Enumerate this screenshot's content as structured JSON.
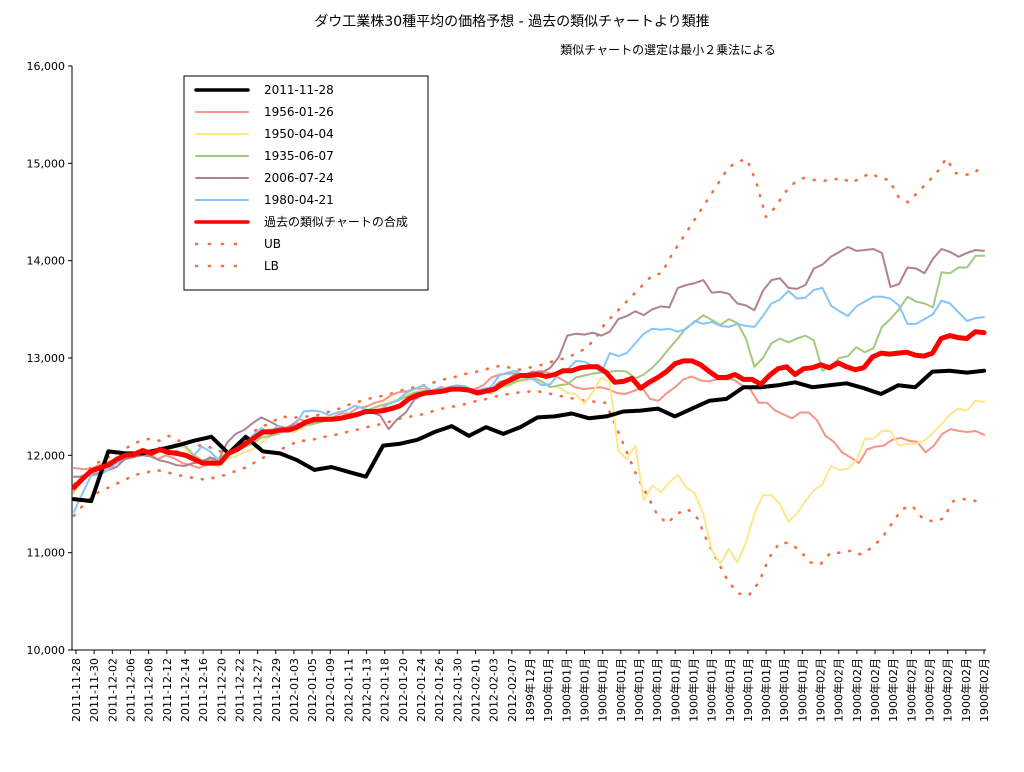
{
  "chart_data": {
    "type": "line",
    "title": "ダウ工業株30種平均の価格予想 - 過去の類似チャートより類推",
    "subtitle": "類似チャートの選定は最小２乗法による",
    "ylim": [
      10000,
      16000
    ],
    "y_ticks": [
      "10,000",
      "11,000",
      "12,000",
      "13,000",
      "14,000",
      "15,000",
      "16,000"
    ],
    "y_tick_values": [
      10000,
      11000,
      12000,
      13000,
      14000,
      15000,
      16000
    ],
    "x_tick_labels": [
      "2011-11-28",
      "2011-11-30",
      "2011-12-02",
      "2011-12-06",
      "2011-12-08",
      "2011-12-12",
      "2011-12-14",
      "2011-12-16",
      "2011-12-20",
      "2011-12-22",
      "2011-12-27",
      "2011-12-29",
      "2012-01-03",
      "2012-01-05",
      "2012-01-09",
      "2012-01-11",
      "2012-01-13",
      "2012-01-18",
      "2012-01-20",
      "2012-01-24",
      "2012-01-26",
      "2012-01-30",
      "2012-02-01",
      "2012-02-03",
      "2012-02-07",
      "1899年12月",
      "1900年01月",
      "1900年01月",
      "1900年01月",
      "1900年01月",
      "1900年01月",
      "1900年01月",
      "1900年01月",
      "1900年01月",
      "1900年01月",
      "1900年01月",
      "1900年01月",
      "1900年01月",
      "1900年01月",
      "1900年01月",
      "1900年01月",
      "1900年02月",
      "1900年02月",
      "1900年02月",
      "1900年02月",
      "1900年02月",
      "1900年02月",
      "1900年02月",
      "1900年02月",
      "1900年02月",
      "1900年02月"
    ],
    "grid": false,
    "legend_position": "top-left",
    "series": [
      {
        "name": "2011-11-28",
        "color": "#000000",
        "style": "solid-thick",
        "values": [
          11550,
          11530,
          12040,
          12020,
          12020,
          12060,
          12100,
          12150,
          12190,
          12020,
          12190,
          12040,
          12020,
          11950,
          11850,
          11880,
          11830,
          11780,
          12100,
          12120,
          12160,
          12240,
          12300,
          12200,
          12290,
          12220,
          12290,
          12390,
          12400,
          12430,
          12380,
          12400,
          12450,
          12460,
          12480,
          12400,
          12480,
          12560,
          12580,
          12700,
          12700,
          12720,
          12750,
          12700,
          12720,
          12740,
          12690,
          12630,
          12720,
          12700,
          12860,
          12870,
          12850,
          12870
        ]
      },
      {
        "name": "1956-01-26",
        "color": "#f79486",
        "style": "solid",
        "values": [
          11870,
          11860,
          11860,
          11900,
          11930,
          11950,
          11970,
          12010,
          12040,
          12020,
          11960,
          12000,
          11970,
          11920,
          11900,
          11870,
          11910,
          11900,
          11960,
          12040,
          12140,
          12170,
          12250,
          12260,
          12270,
          12270,
          12310,
          12370,
          12350,
          12370,
          12370,
          12390,
          12430,
          12430,
          12490,
          12500,
          12540,
          12560,
          12620,
          12650,
          12660,
          12690,
          12680,
          12670,
          12700,
          12680,
          12700,
          12680,
          12680,
          12720,
          12800,
          12830,
          12840,
          12840,
          12830,
          12850,
          12870,
          12840,
          12800,
          12750,
          12700,
          12680,
          12690,
          12700,
          12680,
          12640,
          12630,
          12660,
          12700,
          12580,
          12560,
          12640,
          12700,
          12780,
          12810,
          12770,
          12760,
          12780,
          12780,
          12780,
          12720,
          12680,
          12540,
          12540,
          12460,
          12420,
          12380,
          12440,
          12440,
          12360,
          12200,
          12140,
          12030,
          11980,
          11920,
          12060,
          12090,
          12100,
          12160,
          12180,
          12150,
          12140,
          12030,
          12100,
          12220,
          12270,
          12250,
          12240,
          12250,
          12210
        ]
      },
      {
        "name": "1950-04-04",
        "color": "#fde68c",
        "style": "solid",
        "values": [
          11610,
          11790,
          11820,
          11850,
          11880,
          11940,
          11960,
          11990,
          12010,
          12020,
          12040,
          12040,
          12090,
          12080,
          11970,
          11900,
          11910,
          11880,
          11960,
          11990,
          12030,
          12060,
          12130,
          12190,
          12230,
          12250,
          12240,
          12290,
          12320,
          12340,
          12360,
          12360,
          12370,
          12400,
          12440,
          12470,
          12520,
          12540,
          12580,
          12620,
          12650,
          12670,
          12660,
          12650,
          12680,
          12700,
          12690,
          12650,
          12660,
          12630,
          12690,
          12710,
          12750,
          12770,
          12790,
          12730,
          12710,
          12700,
          12640,
          12630,
          12530,
          12650,
          12800,
          12750,
          12050,
          11960,
          12100,
          11540,
          11690,
          11620,
          11720,
          11800,
          11670,
          11610,
          11400,
          11020,
          10890,
          11040,
          10900,
          11100,
          11400,
          11590,
          11590,
          11500,
          11320,
          11400,
          11530,
          11640,
          11700,
          11890,
          11850,
          11860,
          11950,
          12170,
          12170,
          12250,
          12250,
          12100,
          12120,
          12120,
          12150,
          12230,
          12320,
          12420,
          12480,
          12460,
          12560,
          12550
        ]
      },
      {
        "name": "1935-06-07",
        "color": "#a3c97f",
        "style": "solid",
        "values": [
          11630,
          11790,
          11830,
          11860,
          11880,
          11920,
          11960,
          12020,
          12050,
          12050,
          12070,
          12060,
          12120,
          12100,
          12010,
          11950,
          11960,
          11950,
          12030,
          12050,
          12080,
          12120,
          12180,
          12200,
          12220,
          12260,
          12280,
          12310,
          12320,
          12340,
          12360,
          12360,
          12400,
          12420,
          12450,
          12480,
          12510,
          12530,
          12560,
          12600,
          12640,
          12660,
          12670,
          12650,
          12660,
          12680,
          12670,
          12660,
          12660,
          12640,
          12700,
          12720,
          12760,
          12780,
          12800,
          12760,
          12700,
          12720,
          12730,
          12800,
          12820,
          12840,
          12850,
          12860,
          12870,
          12860,
          12790,
          12830,
          12900,
          12990,
          13100,
          13200,
          13310,
          13370,
          13440,
          13390,
          13340,
          13400,
          13360,
          13200,
          12910,
          13000,
          13150,
          13200,
          13160,
          13200,
          13230,
          13180,
          12870,
          12920,
          13000,
          13020,
          13110,
          13060,
          13100,
          13320,
          13400,
          13500,
          13630,
          13580,
          13560,
          13520,
          13880,
          13870,
          13930,
          13930,
          14050,
          14050
        ]
      },
      {
        "name": "2006-07-24",
        "color": "#b3808f",
        "style": "solid",
        "values": [
          11780,
          11780,
          11800,
          11820,
          11850,
          11880,
          11960,
          11980,
          12000,
          11990,
          11950,
          11930,
          11900,
          11890,
          11920,
          11930,
          11980,
          11950,
          12130,
          12220,
          12260,
          12330,
          12390,
          12350,
          12300,
          12280,
          12320,
          12330,
          12340,
          12350,
          12370,
          12380,
          12380,
          12420,
          12460,
          12440,
          12410,
          12270,
          12370,
          12440,
          12570,
          12620,
          12640,
          12680,
          12660,
          12690,
          12680,
          12640,
          12640,
          12670,
          12750,
          12780,
          12840,
          12830,
          12860,
          12850,
          12900,
          13010,
          13230,
          13250,
          13240,
          13260,
          13230,
          13270,
          13400,
          13430,
          13480,
          13440,
          13500,
          13530,
          13520,
          13720,
          13750,
          13770,
          13800,
          13670,
          13680,
          13660,
          13560,
          13540,
          13490,
          13690,
          13800,
          13820,
          13720,
          13710,
          13750,
          13920,
          13960,
          14040,
          14090,
          14140,
          14100,
          14110,
          14120,
          14080,
          13730,
          13760,
          13930,
          13920,
          13870,
          14020,
          14120,
          14090,
          14040,
          14080,
          14110,
          14100
        ]
      },
      {
        "name": "1980-04-21",
        "color": "#86c5fb",
        "style": "solid",
        "values": [
          11420,
          11610,
          11790,
          11800,
          11850,
          11920,
          11980,
          12010,
          12050,
          12000,
          12080,
          12000,
          12050,
          12010,
          11990,
          12090,
          12040,
          11950,
          12010,
          12080,
          12130,
          12200,
          12280,
          12240,
          12300,
          12260,
          12310,
          12450,
          12460,
          12450,
          12410,
          12440,
          12460,
          12510,
          12480,
          12450,
          12470,
          12530,
          12560,
          12640,
          12680,
          12720,
          12670,
          12680,
          12700,
          12720,
          12710,
          12660,
          12680,
          12700,
          12820,
          12850,
          12870,
          12800,
          12780,
          12720,
          12730,
          12840,
          12880,
          12970,
          12960,
          12920,
          12850,
          13050,
          13020,
          13050,
          13150,
          13250,
          13300,
          13290,
          13300,
          13270,
          13300,
          13380,
          13350,
          13370,
          13330,
          13320,
          13350,
          13330,
          13320,
          13430,
          13560,
          13600,
          13690,
          13610,
          13620,
          13700,
          13720,
          13540,
          13480,
          13430,
          13530,
          13580,
          13630,
          13630,
          13610,
          13540,
          13350,
          13350,
          13400,
          13450,
          13590,
          13560,
          13470,
          13380,
          13410,
          13420
        ]
      },
      {
        "name": "過去の類似チャートの合成",
        "color": "#ff0000",
        "style": "solid-bold",
        "values": [
          11670,
          11760,
          11840,
          11870,
          11900,
          11960,
          12000,
          12010,
          12050,
          12020,
          12060,
          12030,
          12020,
          12000,
          11960,
          11920,
          11920,
          11920,
          12020,
          12060,
          12120,
          12180,
          12240,
          12240,
          12260,
          12260,
          12290,
          12340,
          12370,
          12370,
          12370,
          12380,
          12400,
          12420,
          12450,
          12450,
          12460,
          12480,
          12510,
          12580,
          12620,
          12640,
          12650,
          12660,
          12680,
          12680,
          12670,
          12640,
          12660,
          12680,
          12740,
          12780,
          12820,
          12820,
          12830,
          12810,
          12830,
          12870,
          12870,
          12900,
          12910,
          12910,
          12850,
          12750,
          12760,
          12790,
          12690,
          12750,
          12800,
          12860,
          12940,
          12970,
          12970,
          12930,
          12860,
          12800,
          12800,
          12830,
          12780,
          12780,
          12730,
          12820,
          12890,
          12910,
          12830,
          12890,
          12900,
          12930,
          12900,
          12950,
          12910,
          12880,
          12900,
          13010,
          13050,
          13040,
          13050,
          13060,
          13030,
          13020,
          13050,
          13200,
          13230,
          13210,
          13200,
          13270,
          13260
        ]
      }
    ],
    "bands": [
      {
        "name": "UB",
        "color": "#f2703f",
        "style": "dotted",
        "values": [
          11700,
          11800,
          11900,
          11950,
          12000,
          12050,
          12100,
          12150,
          12170,
          12150,
          12200,
          12150,
          12150,
          12100,
          12100,
          12050,
          12030,
          12050,
          12150,
          12250,
          12300,
          12350,
          12400,
          12380,
          12400,
          12400,
          12420,
          12450,
          12480,
          12520,
          12550,
          12580,
          12600,
          12620,
          12650,
          12680,
          12700,
          12720,
          12750,
          12780,
          12800,
          12830,
          12850,
          12870,
          12900,
          12920,
          12900,
          12880,
          12900,
          12920,
          12950,
          12980,
          13000,
          13050,
          13100,
          13200,
          13350,
          13450,
          13550,
          13650,
          13750,
          13850,
          13870,
          14050,
          14200,
          14350,
          14500,
          14650,
          14800,
          14950,
          15020,
          15040,
          14800,
          14450,
          14550,
          14700,
          14800,
          14850,
          14830,
          14820,
          14830,
          14850,
          14800,
          14850,
          14900,
          14850,
          14830,
          14650,
          14600,
          14700,
          14800,
          14900,
          15050,
          14900,
          14880,
          14900,
          15000
        ]
      },
      {
        "name": "LB",
        "color": "#f2703f",
        "style": "dotted",
        "values": [
          11380,
          11500,
          11600,
          11650,
          11700,
          11750,
          11800,
          11820,
          11850,
          11830,
          11800,
          11780,
          11760,
          11750,
          11780,
          11800,
          11850,
          11880,
          11950,
          12000,
          12050,
          12100,
          12150,
          12150,
          12180,
          12200,
          12220,
          12250,
          12270,
          12300,
          12320,
          12350,
          12380,
          12400,
          12420,
          12450,
          12480,
          12500,
          12520,
          12550,
          12570,
          12600,
          12620,
          12640,
          12650,
          12660,
          12650,
          12620,
          12600,
          12580,
          12560,
          12550,
          12540,
          12300,
          12050,
          11800,
          11600,
          11400,
          11300,
          11400,
          11450,
          11350,
          11100,
          10900,
          10700,
          10580,
          10560,
          10700,
          10950,
          11100,
          11100,
          11020,
          10900,
          10880,
          11000,
          11000,
          11020,
          10980,
          11050,
          11150,
          11300,
          11450,
          11480,
          11350,
          11320,
          11350,
          11530,
          11550,
          11530,
          11550
        ]
      }
    ]
  }
}
